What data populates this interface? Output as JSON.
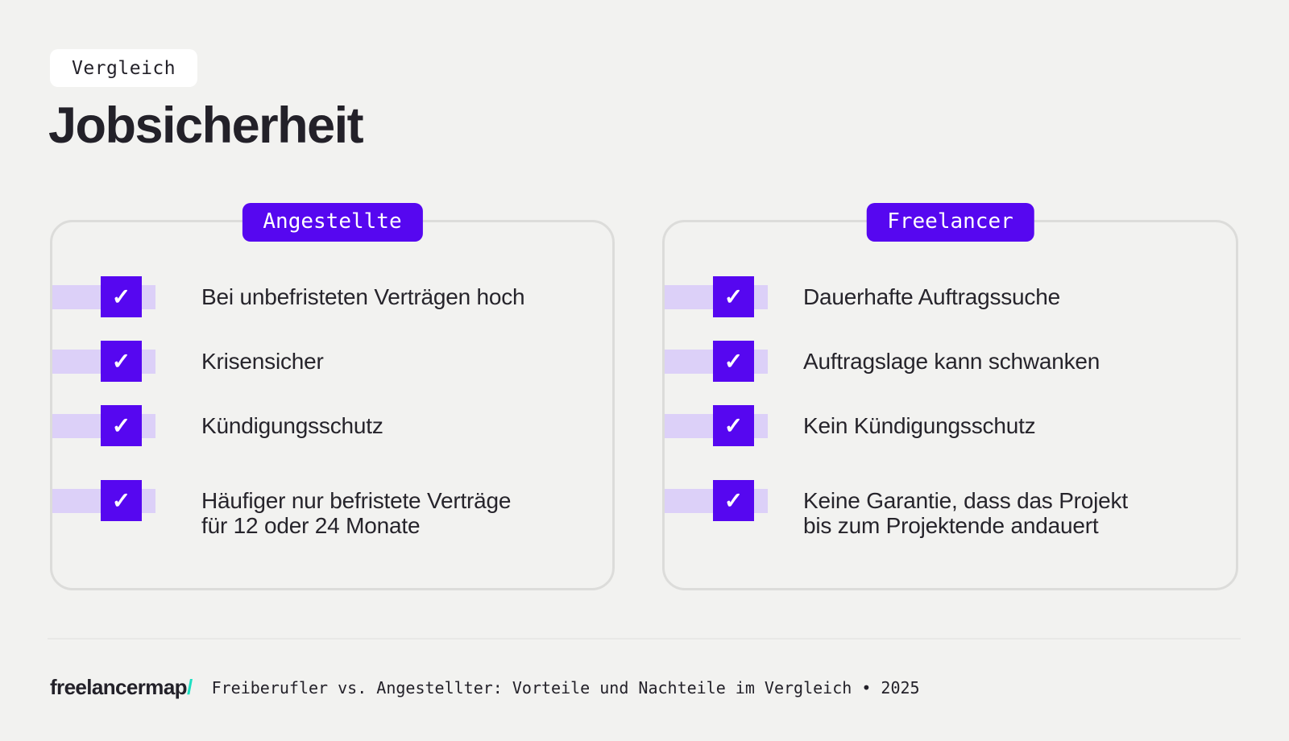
{
  "header": {
    "tag": "Vergleich",
    "title": "Jobsicherheit"
  },
  "colors": {
    "background": "#f2f2f0",
    "accent_purple": "#5607f0",
    "accent_lavender": "#dcd0f8",
    "text_dark": "#232129",
    "card_border": "#dcdcda",
    "logo_teal": "#1ee0c2",
    "badge_white": "#ffffff"
  },
  "checkmark": "✓",
  "cards": [
    {
      "label": "Angestellte",
      "items": [
        "Bei unbefristeten Verträgen hoch",
        "Krisensicher",
        "Kündigungsschutz",
        "Häufiger nur befristete Verträge\nfür 12 oder 24 Monate"
      ]
    },
    {
      "label": "Freelancer",
      "items": [
        "Dauerhafte Auftragssuche",
        "Auftragslage kann schwanken",
        "Kein Kündigungsschutz",
        "Keine Garantie, dass das Projekt\nbis zum Projektende andauert"
      ]
    }
  ],
  "footer": {
    "logo": "freelancermap",
    "logo_slash": "/",
    "caption": "Freiberufler vs. Angestellter: Vorteile und Nachteile im Vergleich • 2025"
  }
}
